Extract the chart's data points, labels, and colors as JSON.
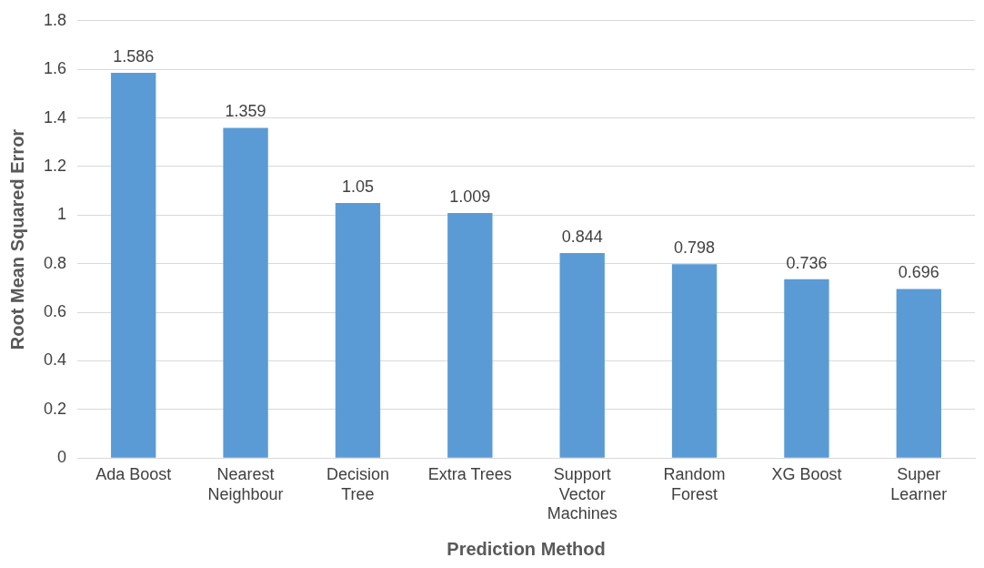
{
  "chart_data": {
    "type": "bar",
    "xlabel": "Prediction Method",
    "ylabel": "Root Mean Squared Error",
    "categories": [
      "Ada Boost",
      "Nearest Neighbour",
      "Decision Tree",
      "Extra Trees",
      "Support Vector Machines",
      "Random Forest",
      "XG Boost",
      "Super Learner"
    ],
    "values": [
      1.586,
      1.359,
      1.05,
      1.009,
      0.844,
      0.798,
      0.736,
      0.696
    ],
    "color": "#5b9bd5",
    "ylim": [
      0,
      1.8
    ],
    "yticks": [
      0,
      0.2,
      0.4,
      0.6,
      0.8,
      1,
      1.2,
      1.4,
      1.6,
      1.8
    ],
    "grid": "y",
    "data_labels": true,
    "legend": false
  }
}
